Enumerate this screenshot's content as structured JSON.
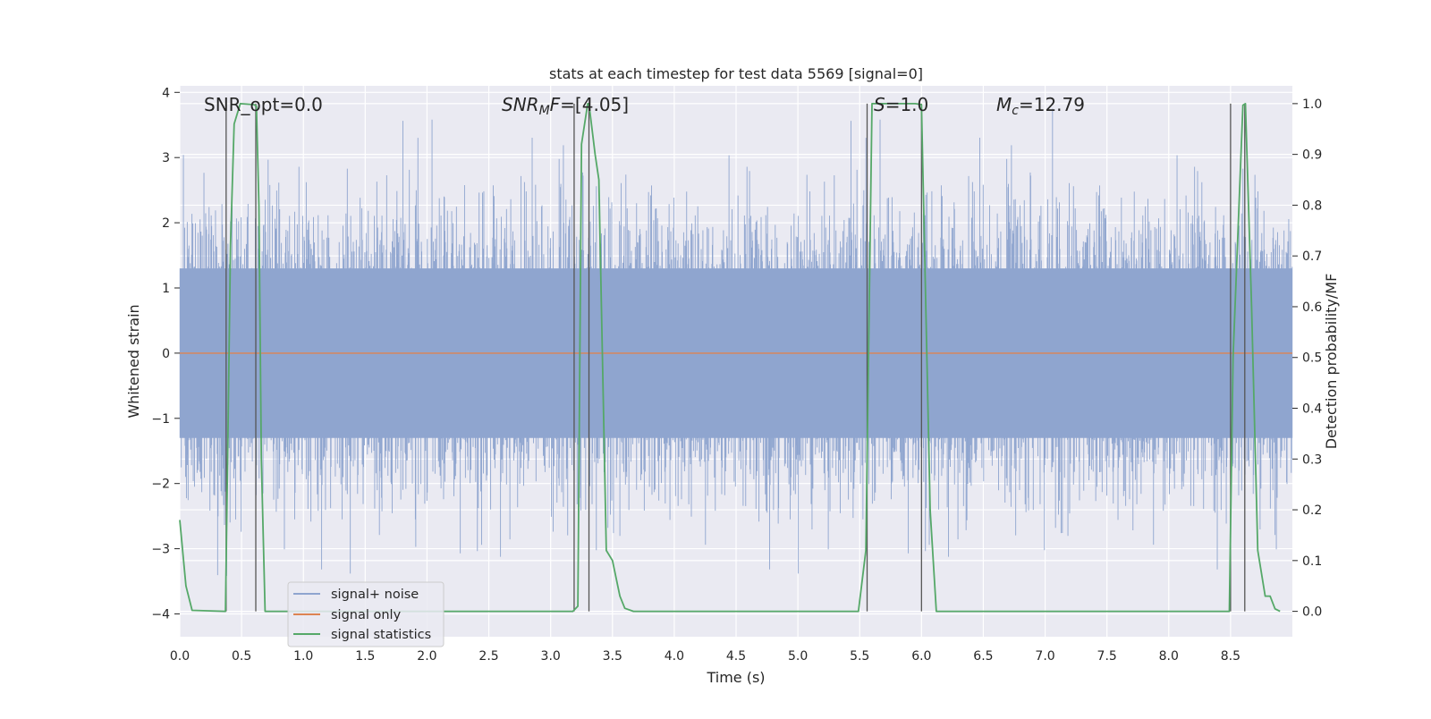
{
  "chart_data": {
    "type": "line",
    "title": "stats at each timestep for test data 5569 [signal=0]",
    "xlabel": "Time (s)",
    "ylabel_left": "Whitened strain",
    "ylabel_right": "Detection probability/MF",
    "xlim": [
      0.0,
      9.0
    ],
    "ylim_left": [
      -4.35,
      4.1
    ],
    "ylim_right": [
      -0.05,
      1.035
    ],
    "x_ticks": [
      "0.0",
      "0.5",
      "1.0",
      "1.5",
      "2.0",
      "2.5",
      "3.0",
      "3.5",
      "4.0",
      "4.5",
      "5.0",
      "5.5",
      "6.0",
      "6.5",
      "7.0",
      "7.5",
      "8.0",
      "8.5"
    ],
    "y_ticks_left": [
      "−4",
      "−3",
      "−2",
      "−1",
      "0",
      "1",
      "2",
      "3",
      "4"
    ],
    "y_ticks_right": [
      "0.0",
      "0.1",
      "0.2",
      "0.3",
      "0.4",
      "0.5",
      "0.6",
      "0.7",
      "0.8",
      "0.9",
      "1.0"
    ],
    "grid": true,
    "legend_position": "lower-left",
    "annotations": {
      "snr_opt": "SNR_opt=0.0",
      "snr_mf_symbol": "SNR",
      "snr_mf_sub": "M",
      "snr_mf_tail": "F",
      "snr_mf_value": "=[4.05]",
      "s_symbol": "S",
      "s_value": "=1.0",
      "mc_symbol": "M",
      "mc_sub": "c",
      "mc_value": "=12.79"
    },
    "series": [
      {
        "name": "signal+ noise",
        "color": "#8fa5cf",
        "kind": "noise",
        "std": 1.0,
        "peak_range": [
          -3.9,
          3.75
        ]
      },
      {
        "name": "signal only",
        "color": "#dd8452",
        "x": [
          0.0,
          9.0
        ],
        "y": [
          0.0,
          0.0
        ]
      },
      {
        "name": "signal statistics",
        "color": "#55a868",
        "axis": "right",
        "x": [
          0.0,
          0.05,
          0.1,
          0.37,
          0.39,
          0.41,
          0.44,
          0.49,
          0.6,
          0.62,
          0.64,
          0.66,
          0.69,
          0.75,
          3.18,
          3.22,
          3.25,
          3.3,
          3.31,
          3.36,
          3.39,
          3.45,
          3.5,
          3.56,
          3.6,
          3.67,
          5.49,
          5.55,
          5.6,
          5.95,
          6.0,
          6.07,
          6.12,
          8.49,
          8.52,
          8.6,
          8.62,
          8.67,
          8.72,
          8.78,
          8.82,
          8.86,
          8.9
        ],
        "y": [
          0.18,
          0.05,
          0.002,
          0.0,
          0.35,
          0.72,
          0.96,
          1.0,
          0.998,
          0.995,
          0.8,
          0.3,
          0.0,
          0.0,
          0.0,
          0.01,
          0.92,
          1.0,
          1.0,
          0.9,
          0.85,
          0.12,
          0.1,
          0.03,
          0.006,
          0.0,
          0.0,
          0.12,
          1.0,
          1.0,
          0.998,
          0.2,
          0.0,
          0.0,
          0.5,
          0.997,
          1.0,
          0.6,
          0.12,
          0.03,
          0.03,
          0.005,
          0.0
        ]
      }
    ],
    "vertical_markers": {
      "color": "#555555",
      "axis": "right",
      "lines": [
        {
          "x": 0.375,
          "y0": 0.0,
          "y1": 1.0
        },
        {
          "x": 0.615,
          "y0": 0.0,
          "y1": 1.0
        },
        {
          "x": 3.19,
          "y0": 0.0,
          "y1": 1.0
        },
        {
          "x": 3.31,
          "y0": 0.0,
          "y1": 1.0
        },
        {
          "x": 5.56,
          "y0": 0.0,
          "y1": 1.0
        },
        {
          "x": 6.0,
          "y0": 0.0,
          "y1": 1.0
        },
        {
          "x": 8.5,
          "y0": 0.0,
          "y1": 1.0
        },
        {
          "x": 8.615,
          "y0": 0.0,
          "y1": 1.0
        }
      ]
    }
  }
}
